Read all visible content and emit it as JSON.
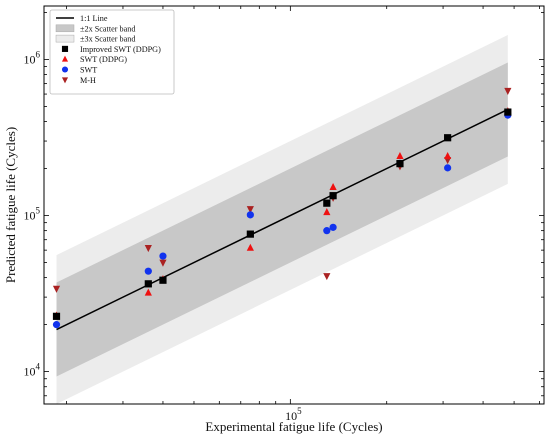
{
  "chart_data": {
    "type": "scatter",
    "xlabel": "Experimental fatigue life (Cycles)",
    "ylabel": "Predicted fatigue life (Cycles)",
    "xscale": "log",
    "yscale": "log",
    "xlim": [
      17000,
      620000
    ],
    "ylim": [
      6200,
      2200000
    ],
    "grid": false,
    "legend_position": "top-left",
    "x_ticks": [
      {
        "value": 100000,
        "base": "10",
        "exp": "5"
      }
    ],
    "y_ticks": [
      {
        "value": 10000,
        "base": "10",
        "exp": "4"
      },
      {
        "value": 100000,
        "base": "10",
        "exp": "5"
      },
      {
        "value": 1000000,
        "base": "10",
        "exp": "6"
      }
    ],
    "line": {
      "name": "1:1 Line",
      "x_range": [
        18600,
        478000
      ],
      "color": "#000000"
    },
    "bands": [
      {
        "name": "±3x Scatter band",
        "factor": 3,
        "color": "#ececec"
      },
      {
        "name": "±2x Scatter band",
        "factor": 2,
        "color": "#c8c8c8"
      }
    ],
    "series": [
      {
        "name": "Improved SWT (DDPG)",
        "marker": "square",
        "color": "#000000",
        "points": [
          [
            18600,
            22600
          ],
          [
            36000,
            36500
          ],
          [
            40000,
            38500
          ],
          [
            75000,
            76000
          ],
          [
            130000,
            120000
          ],
          [
            136000,
            134000
          ],
          [
            220000,
            215000
          ],
          [
            310000,
            315000
          ],
          [
            478000,
            460000
          ]
        ]
      },
      {
        "name": "SWT (DDPG)",
        "marker": "triangle-up",
        "color": "#ee1111",
        "points": [
          [
            18600,
            22800
          ],
          [
            36000,
            32000
          ],
          [
            40000,
            39000
          ],
          [
            75000,
            62000
          ],
          [
            130000,
            105000
          ],
          [
            136000,
            152000
          ],
          [
            220000,
            240000
          ],
          [
            310000,
            240000
          ],
          [
            478000,
            465000
          ]
        ]
      },
      {
        "name": "SWT",
        "marker": "circle",
        "color": "#1133ee",
        "points": [
          [
            18600,
            20000
          ],
          [
            36000,
            44000
          ],
          [
            40000,
            55000
          ],
          [
            75000,
            101000
          ],
          [
            130000,
            80000
          ],
          [
            136000,
            84000
          ],
          [
            220000,
            216000
          ],
          [
            310000,
            202000
          ],
          [
            478000,
            440000
          ]
        ]
      },
      {
        "name": "M-H",
        "marker": "triangle-down",
        "color": "#aa2222",
        "points": [
          [
            18600,
            34000
          ],
          [
            36000,
            62000
          ],
          [
            40000,
            50000
          ],
          [
            75000,
            110000
          ],
          [
            130000,
            41000
          ],
          [
            136000,
            130000
          ],
          [
            220000,
            207000
          ],
          [
            310000,
            227000
          ],
          [
            478000,
            630000
          ]
        ]
      }
    ]
  }
}
